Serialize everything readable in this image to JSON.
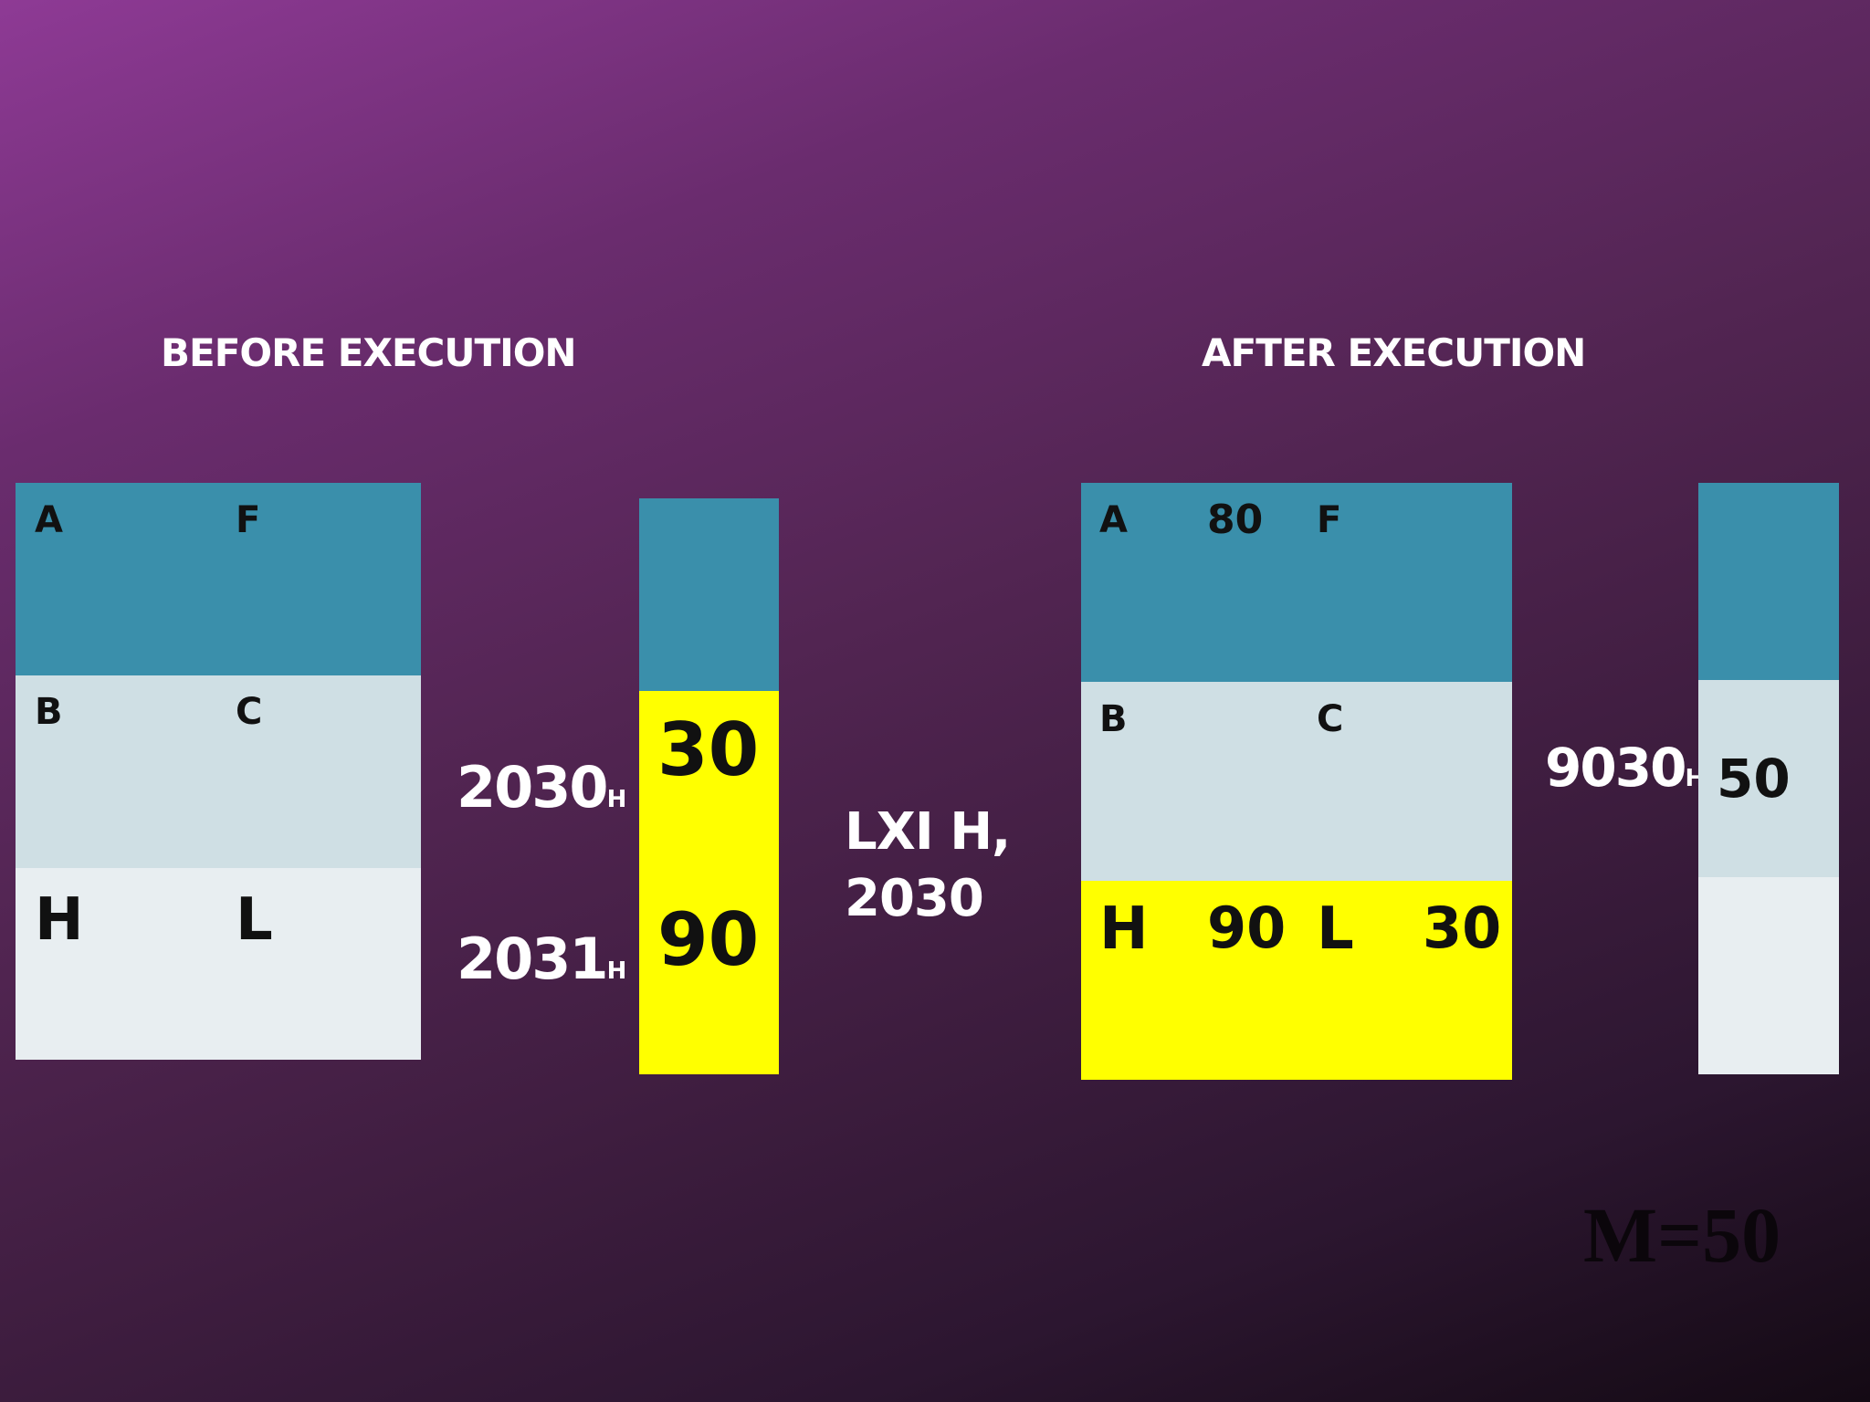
{
  "headings": {
    "before": "BEFORE EXECUTION",
    "after": "AFTER EXECUTION"
  },
  "before_registers": {
    "a": "A",
    "f": "F",
    "b": "B",
    "c": "C",
    "h": "H",
    "l": "L"
  },
  "before_memory": {
    "addr1": "2030",
    "addr1_suffix": "H",
    "val1": "30",
    "addr2": "2031",
    "addr2_suffix": "H",
    "val2": "90"
  },
  "instruction": {
    "line1": "LXI H,",
    "line2": "2030"
  },
  "after_registers": {
    "a": "A",
    "a_val": "80",
    "f": "F",
    "b": "B",
    "c": "C",
    "h": "H",
    "h_val": "90",
    "l": "L",
    "l_val": "30"
  },
  "after_memory": {
    "addr": "9030",
    "addr_suffix": "H",
    "val": "50"
  },
  "note": "M=50",
  "colors": {
    "teal": "#3a8fab",
    "pale": "#cfdfe4",
    "white": "#e8eef1",
    "highlight": "#ffff00"
  }
}
